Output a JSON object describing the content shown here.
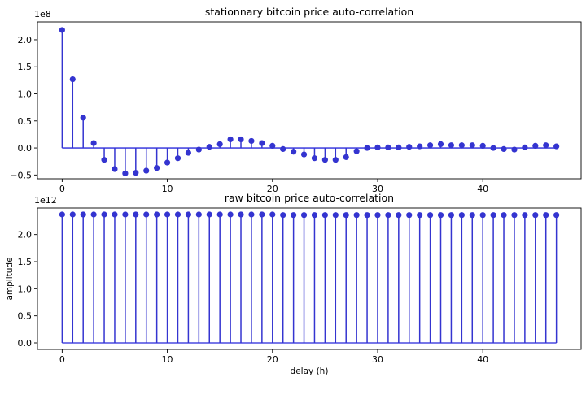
{
  "chart_data": [
    {
      "type": "stem",
      "title": "stationnary bitcoin price auto-correlation",
      "xlabel": "",
      "ylabel": "",
      "y_offset_label": "1e8",
      "x": [
        0,
        1,
        2,
        3,
        4,
        5,
        6,
        7,
        8,
        9,
        10,
        11,
        12,
        13,
        14,
        15,
        16,
        17,
        18,
        19,
        20,
        21,
        22,
        23,
        24,
        25,
        26,
        27,
        28,
        29,
        30,
        31,
        32,
        33,
        34,
        35,
        36,
        37,
        38,
        39,
        40,
        41,
        42,
        43,
        44,
        45,
        46,
        47
      ],
      "values": [
        2.18,
        1.27,
        0.56,
        0.09,
        -0.22,
        -0.39,
        -0.47,
        -0.46,
        -0.42,
        -0.37,
        -0.27,
        -0.19,
        -0.09,
        -0.03,
        0.02,
        0.07,
        0.16,
        0.16,
        0.13,
        0.09,
        0.04,
        -0.02,
        -0.07,
        -0.12,
        -0.19,
        -0.22,
        -0.22,
        -0.17,
        -0.06,
        0.0,
        0.01,
        0.01,
        0.01,
        0.02,
        0.03,
        0.05,
        0.07,
        0.05,
        0.05,
        0.05,
        0.04,
        0.0,
        -0.02,
        -0.03,
        0.01,
        0.04,
        0.05,
        0.03
      ],
      "xlim": [
        -2.35,
        49.35
      ],
      "ylim": [
        -0.57,
        2.33
      ],
      "xticks": [
        0,
        10,
        20,
        30,
        40
      ],
      "yticks": [
        -0.5,
        0.0,
        0.5,
        1.0,
        1.5,
        2.0
      ],
      "ytick_labels": [
        "−0.5",
        "0.0",
        "0.5",
        "1.0",
        "1.5",
        "2.0"
      ],
      "color": "#3434d0",
      "baseline_color": "#4a4ae0",
      "grid": false
    },
    {
      "type": "stem",
      "title": "raw bitcoin price auto-correlation",
      "xlabel": "delay (h)",
      "ylabel": "amplitude",
      "y_offset_label": "1e12",
      "x": [
        0,
        1,
        2,
        3,
        4,
        5,
        6,
        7,
        8,
        9,
        10,
        11,
        12,
        13,
        14,
        15,
        16,
        17,
        18,
        19,
        20,
        21,
        22,
        23,
        24,
        25,
        26,
        27,
        28,
        29,
        30,
        31,
        32,
        33,
        34,
        35,
        36,
        37,
        38,
        39,
        40,
        41,
        42,
        43,
        44,
        45,
        46,
        47
      ],
      "values": [
        2.37,
        2.37,
        2.37,
        2.37,
        2.37,
        2.37,
        2.37,
        2.37,
        2.37,
        2.37,
        2.37,
        2.37,
        2.37,
        2.37,
        2.37,
        2.37,
        2.37,
        2.37,
        2.37,
        2.37,
        2.37,
        2.36,
        2.36,
        2.36,
        2.36,
        2.36,
        2.36,
        2.36,
        2.36,
        2.36,
        2.36,
        2.36,
        2.36,
        2.36,
        2.36,
        2.36,
        2.36,
        2.36,
        2.36,
        2.36,
        2.36,
        2.36,
        2.36,
        2.36,
        2.36,
        2.36,
        2.36,
        2.36
      ],
      "xlim": [
        -2.35,
        49.35
      ],
      "ylim": [
        -0.12,
        2.49
      ],
      "xticks": [
        0,
        10,
        20,
        30,
        40
      ],
      "yticks": [
        0.0,
        0.5,
        1.0,
        1.5,
        2.0
      ],
      "ytick_labels": [
        "0.0",
        "0.5",
        "1.0",
        "1.5",
        "2.0"
      ],
      "color": "#3434d0",
      "baseline_color": "#4a4ae0",
      "grid": false
    }
  ]
}
